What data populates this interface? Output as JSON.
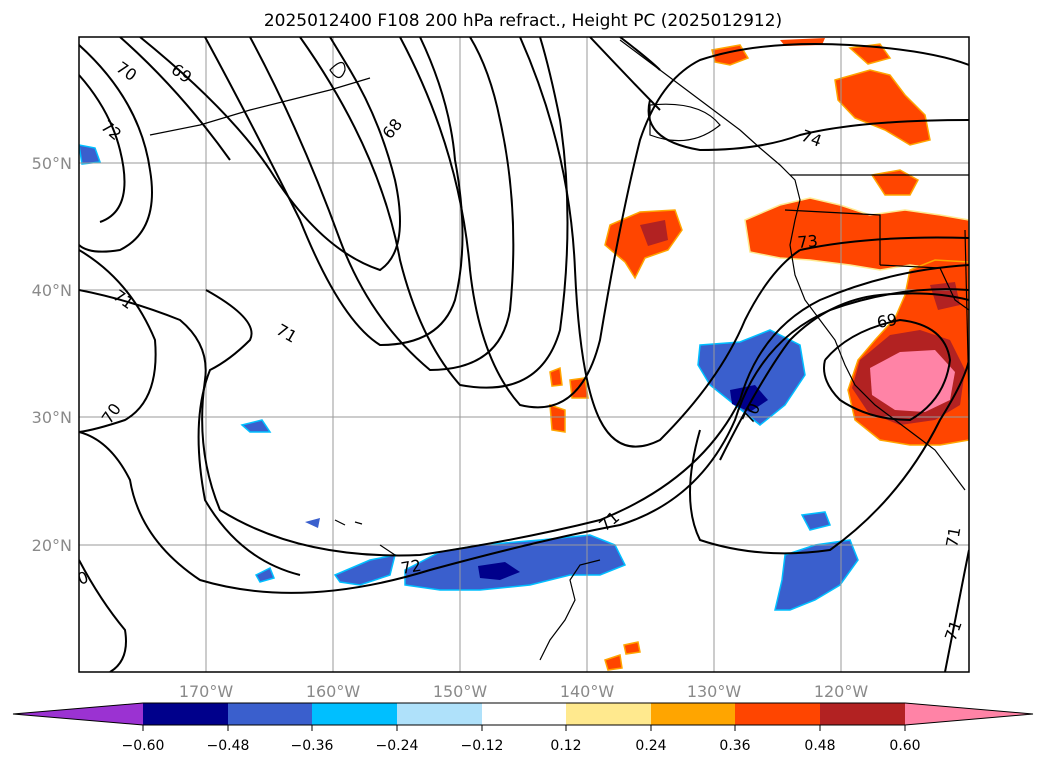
{
  "map": {
    "title": "2025012400 F108 200 hPa refract., Height PC (2025012912)",
    "lon_labels": [
      "170°W",
      "160°W",
      "150°W",
      "140°W",
      "130°W",
      "120°W"
    ],
    "lat_labels": [
      "50°N",
      "40°N",
      "30°N",
      "20°N"
    ],
    "contour_labels": [
      "70",
      "69",
      "72",
      "68",
      "71",
      "71",
      "70",
      "74",
      "73",
      "69",
      "70",
      "72",
      "71",
      "71",
      "71",
      "0"
    ],
    "colorbar": {
      "ticks": [
        "−0.60",
        "−0.48",
        "−0.36",
        "−0.24",
        "−0.12",
        "0.12",
        "0.24",
        "0.36",
        "0.48",
        "0.60"
      ],
      "colors": [
        "#9b32d2",
        "#00008b",
        "#3a5fcd",
        "#00bfff",
        "#afe1fa",
        "#ffffff",
        "#ffe98e",
        "#ffa500",
        "#ff4500",
        "#b22222",
        "#ff83a6"
      ]
    }
  }
}
